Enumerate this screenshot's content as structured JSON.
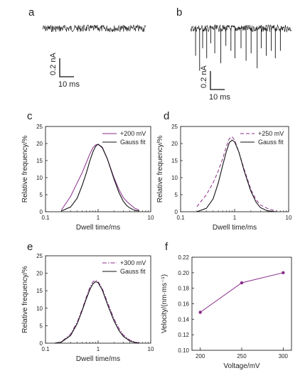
{
  "colors": {
    "measured": "#8a2c8a",
    "fit": "#111111",
    "axis": "#222222",
    "trace": "#111111"
  },
  "traces": [
    {
      "letter": "a",
      "scale_current": "0.2 nA",
      "scale_time": "10 ms",
      "blockades": []
    },
    {
      "letter": "b",
      "scale_current": "0.2 nA",
      "scale_time": "10 ms",
      "blockades": [
        {
          "t": 0.05,
          "depth": 0.55
        },
        {
          "t": 0.09,
          "depth": 0.85
        },
        {
          "t": 0.12,
          "depth": 0.4
        },
        {
          "t": 0.16,
          "depth": 0.6
        },
        {
          "t": 0.2,
          "depth": 0.3
        },
        {
          "t": 0.24,
          "depth": 0.5
        },
        {
          "t": 0.3,
          "depth": 0.7
        },
        {
          "t": 0.35,
          "depth": 0.35
        },
        {
          "t": 0.4,
          "depth": 0.45
        },
        {
          "t": 0.44,
          "depth": 0.6
        },
        {
          "t": 0.5,
          "depth": 0.4
        },
        {
          "t": 0.55,
          "depth": 0.65
        },
        {
          "t": 0.6,
          "depth": 0.5
        },
        {
          "t": 0.66,
          "depth": 0.8
        },
        {
          "t": 0.7,
          "depth": 0.4
        },
        {
          "t": 0.75,
          "depth": 0.55
        },
        {
          "t": 0.8,
          "depth": 0.45
        },
        {
          "t": 0.84,
          "depth": 0.6
        },
        {
          "t": 0.89,
          "depth": 0.45
        }
      ]
    }
  ],
  "chart_data": [
    {
      "panel": "c",
      "type": "line",
      "xscale": "log",
      "xlim": [
        0.1,
        10
      ],
      "ylim": [
        0,
        25
      ],
      "xticks": [
        0.1,
        1,
        10
      ],
      "xtick_labels": [
        "0.1",
        "1",
        "10"
      ],
      "yticks": [
        0,
        5,
        10,
        15,
        20,
        25
      ],
      "xlabel": "Dwell time/ms",
      "ylabel": "Relative frequency/%",
      "legend_position": "top-right",
      "series": [
        {
          "name": "+200 mV",
          "style": "solid",
          "color": "measured",
          "x": [
            0.2,
            0.3,
            0.4,
            0.5,
            0.6,
            0.7,
            0.8,
            0.9,
            1.0,
            1.2,
            1.5,
            2.0,
            2.5,
            3.0,
            3.5,
            4.0,
            5.0,
            6.0
          ],
          "y": [
            0.5,
            4.5,
            8.5,
            11.5,
            14.5,
            17.0,
            18.8,
            19.6,
            19.8,
            18.7,
            15.5,
            10.0,
            6.5,
            4.2,
            3.0,
            2.2,
            1.0,
            0.5
          ]
        },
        {
          "name": "Gauss fit",
          "style": "solid",
          "color": "fit",
          "x": [
            0.2,
            0.3,
            0.4,
            0.5,
            0.6,
            0.7,
            0.8,
            0.9,
            1.0,
            1.2,
            1.5,
            2.0,
            2.5,
            3.0,
            3.5,
            4.0,
            5.0,
            6.0
          ],
          "y": [
            0.2,
            1.4,
            4.0,
            7.8,
            11.5,
            15.0,
            17.6,
            19.2,
            19.8,
            18.9,
            15.5,
            9.6,
            5.6,
            3.1,
            1.8,
            1.1,
            0.4,
            0.2
          ]
        }
      ]
    },
    {
      "panel": "d",
      "type": "line",
      "xscale": "log",
      "xlim": [
        0.1,
        10
      ],
      "ylim": [
        0,
        25
      ],
      "xticks": [
        0.1,
        1,
        10
      ],
      "xtick_labels": [
        "0.1",
        "1",
        "10"
      ],
      "yticks": [
        0,
        5,
        10,
        15,
        20,
        25
      ],
      "xlabel": "Dwell time/ms",
      "ylabel": "Relative frequency/%",
      "legend_position": "top-right",
      "series": [
        {
          "name": "+250 mV",
          "style": "dashed",
          "color": "measured",
          "x": [
            0.2,
            0.3,
            0.4,
            0.5,
            0.6,
            0.7,
            0.8,
            0.9,
            1.0,
            1.2,
            1.5,
            2.0,
            2.5,
            3.0,
            4.0,
            5.0,
            6.0
          ],
          "y": [
            1.5,
            5.0,
            8.5,
            12.0,
            15.5,
            19.0,
            21.5,
            22.0,
            21.0,
            17.5,
            12.5,
            6.5,
            3.5,
            2.0,
            1.0,
            0.5,
            0.3
          ]
        },
        {
          "name": "Gauss fit",
          "style": "solid",
          "color": "fit",
          "x": [
            0.2,
            0.3,
            0.4,
            0.5,
            0.6,
            0.7,
            0.8,
            0.9,
            1.0,
            1.2,
            1.5,
            2.0,
            2.5,
            3.0,
            4.0,
            5.0,
            6.0
          ],
          "y": [
            0.0,
            1.0,
            3.8,
            8.5,
            13.5,
            17.5,
            20.3,
            21.0,
            20.5,
            17.5,
            12.0,
            6.0,
            2.8,
            1.2,
            0.3,
            0.1,
            0.0
          ]
        }
      ]
    },
    {
      "panel": "e",
      "type": "line",
      "xscale": "log",
      "xlim": [
        0.1,
        10
      ],
      "ylim": [
        0,
        25
      ],
      "xticks": [
        0.1,
        1,
        10
      ],
      "xtick_labels": [
        "0.1",
        "1",
        "10"
      ],
      "yticks": [
        0,
        5,
        10,
        15,
        20,
        25
      ],
      "xlabel": "Dwell time/ms",
      "ylabel": "Relative frequency/%",
      "legend_position": "top-right",
      "series": [
        {
          "name": "+300 mV",
          "style": "dashdot",
          "color": "measured",
          "x": [
            0.15,
            0.2,
            0.3,
            0.4,
            0.5,
            0.6,
            0.7,
            0.8,
            0.9,
            1.0,
            1.2,
            1.5,
            2.0,
            2.5,
            3.0,
            4.0,
            5.0,
            6.0
          ],
          "y": [
            0.0,
            0.4,
            2.6,
            6.0,
            9.8,
            13.3,
            16.0,
            17.6,
            18.0,
            17.6,
            15.6,
            11.8,
            7.0,
            4.2,
            2.4,
            0.9,
            0.3,
            0.1
          ]
        },
        {
          "name": "Gauss fit",
          "style": "solid",
          "color": "fit",
          "x": [
            0.15,
            0.2,
            0.3,
            0.4,
            0.5,
            0.6,
            0.7,
            0.8,
            0.9,
            1.0,
            1.2,
            1.5,
            2.0,
            2.5,
            3.0,
            4.0,
            5.0,
            6.0
          ],
          "y": [
            0.0,
            0.3,
            2.2,
            5.6,
            9.4,
            12.8,
            15.4,
            17.0,
            17.6,
            17.3,
            15.2,
            11.2,
            6.4,
            3.6,
            2.0,
            0.6,
            0.2,
            0.0
          ]
        }
      ]
    },
    {
      "panel": "f",
      "type": "line",
      "xscale": "linear",
      "xlim": [
        190,
        310
      ],
      "ylim": [
        0.1,
        0.22
      ],
      "xticks": [
        200,
        250,
        300
      ],
      "xtick_labels": [
        "200",
        "250",
        "300"
      ],
      "yticks": [
        0.1,
        0.12,
        0.14,
        0.16,
        0.18,
        0.2,
        0.22
      ],
      "ytick_labels": [
        "0.10",
        "0.12",
        "0.14",
        "0.16",
        "0.18",
        "0.20",
        "0.22"
      ],
      "xlabel": "Voltage/mV",
      "ylabel": "Velocity/(nm·ms⁻¹)",
      "markers": true,
      "series": [
        {
          "style": "solid",
          "color": "measured",
          "x": [
            200,
            250,
            300
          ],
          "y": [
            0.149,
            0.187,
            0.2
          ]
        }
      ]
    }
  ]
}
